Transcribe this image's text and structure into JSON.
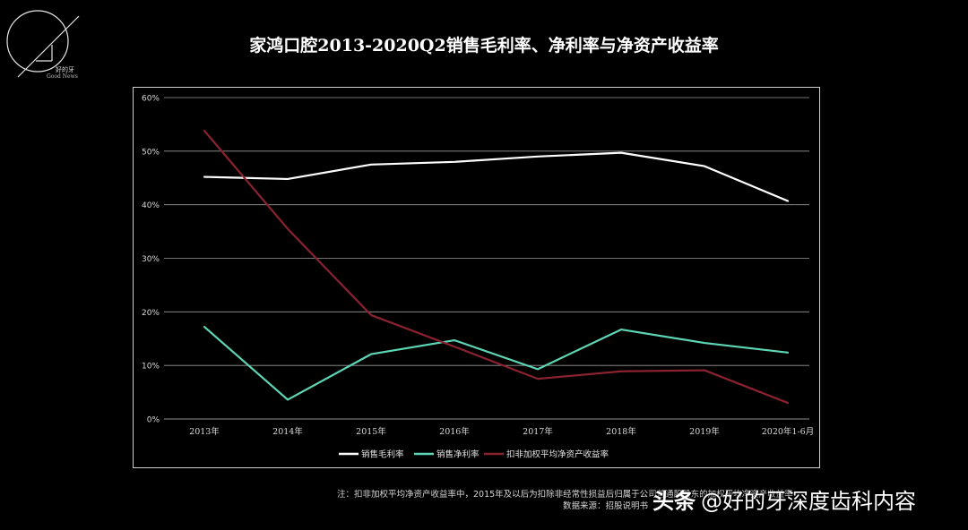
{
  "logo": {
    "text_cn": "好的牙",
    "text_en": "Good News"
  },
  "chart_data": {
    "type": "line",
    "title": "家鸿口腔2013-2020Q2销售毛利率、净利率与净资产收益率",
    "categories": [
      "2013年",
      "2014年",
      "2015年",
      "2016年",
      "2017年",
      "2018年",
      "2019年",
      "2020年1-6月"
    ],
    "ylim": [
      0,
      60
    ],
    "yticks": [
      "0%",
      "10%",
      "20%",
      "30%",
      "40%",
      "50%",
      "60%"
    ],
    "grid": true,
    "legend_position": "bottom",
    "series": [
      {
        "name": "销售毛利率",
        "color": "#ffffff",
        "values": [
          45.2,
          44.8,
          47.5,
          48.0,
          49.0,
          49.7,
          47.2,
          40.7
        ]
      },
      {
        "name": "销售净利率",
        "color": "#5ed6b6",
        "values": [
          17.2,
          3.6,
          12.1,
          14.7,
          9.3,
          16.7,
          14.2,
          12.4
        ]
      },
      {
        "name": "扣非加权平均净资产收益率",
        "color": "#8b2230",
        "values": [
          53.8,
          35.5,
          19.4,
          13.5,
          7.5,
          8.9,
          9.1,
          3.0
        ]
      }
    ]
  },
  "footnote": "注：扣非加权平均净资产收益率中，2015年及以后为扣除非经常性损益后归属于公司普通股股东的加权平均净资产收益率",
  "source": "数据来源：招股说明书",
  "watermark": {
    "brand": "头条",
    "handle": "@好的牙深度齿科内容"
  }
}
